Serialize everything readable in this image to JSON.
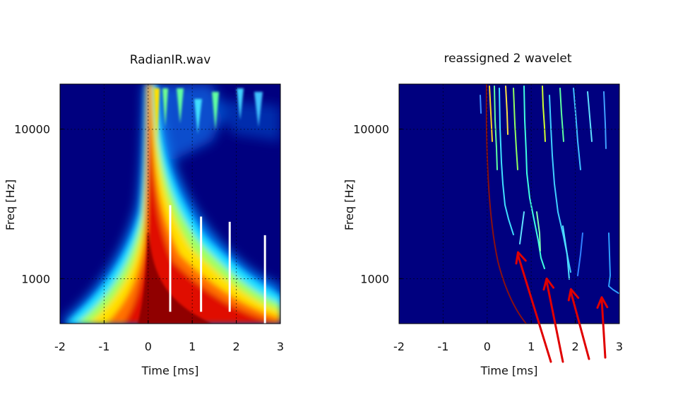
{
  "chart_data": [
    {
      "type": "heatmap",
      "title": "RadianIR.wav",
      "xlabel": "Time [ms]",
      "ylabel": "Freq [Hz]",
      "xlim": [
        -2,
        3
      ],
      "ylim": [
        500,
        20000
      ],
      "y_scale": "log",
      "x_ticks": [
        "-2",
        "-1",
        "0",
        "1",
        "2",
        "3"
      ],
      "y_ticks": [
        "1000",
        "10000"
      ],
      "grid": true,
      "colormap": "jet",
      "markers": [
        {
          "x": 0.5,
          "y_from": 600,
          "y_to": 3100
        },
        {
          "x": 1.2,
          "y_from": 600,
          "y_to": 2600
        },
        {
          "x": 1.85,
          "y_from": 600,
          "y_to": 2400
        },
        {
          "x": 2.65,
          "y_from": 500,
          "y_to": 1950
        }
      ]
    },
    {
      "type": "heatmap",
      "title": "reassigned 2 wavelet",
      "xlabel": "Time [ms]",
      "ylabel": "Freq [Hz]",
      "xlim": [
        -2,
        3
      ],
      "ylim": [
        500,
        20000
      ],
      "y_scale": "log",
      "x_ticks": [
        "-2",
        "-1",
        "0",
        "1",
        "2",
        "3"
      ],
      "y_ticks": [
        "1000",
        "10000"
      ],
      "grid": true,
      "colormap": "jet",
      "arrows": [
        {
          "tip_x": 0.7,
          "tip_y": 1500
        },
        {
          "tip_x": 1.35,
          "tip_y": 1000
        },
        {
          "tip_x": 1.9,
          "tip_y": 850
        },
        {
          "tip_x": 2.6,
          "tip_y": 750
        }
      ]
    }
  ],
  "colors": {
    "background": "#00007f",
    "annotation_arrow": "#e00000",
    "marker_line": "#ffffff"
  }
}
